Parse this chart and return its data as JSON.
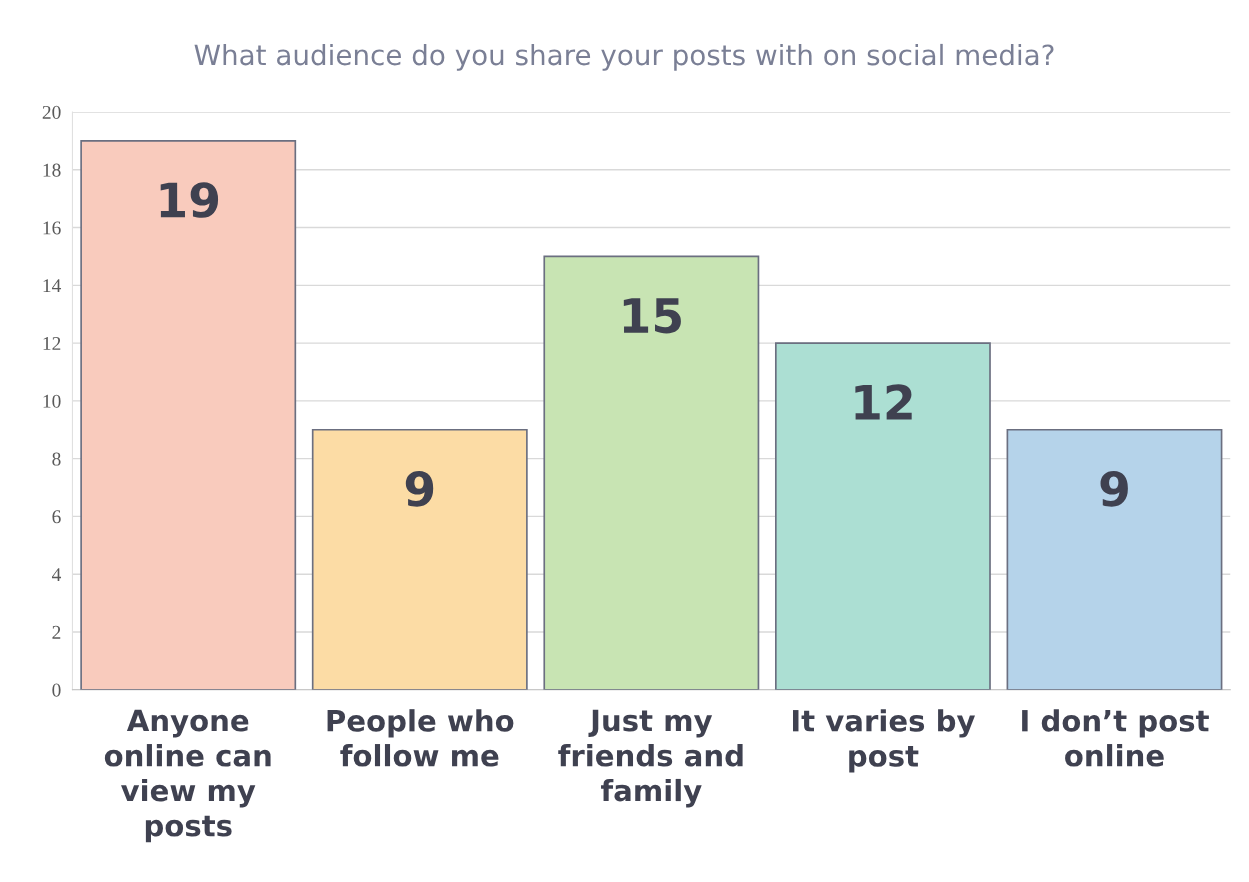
{
  "chart_data": {
    "type": "bar",
    "title": "What audience do you share your posts with on social media?",
    "categories": [
      "Anyone\nonline can\nview my\nposts",
      "People who\nfollow me",
      "Just my\nfriends and\nfamily",
      "It varies by\npost",
      "I don’t post\nonline"
    ],
    "values": [
      19,
      9,
      15,
      12,
      9
    ],
    "colors": [
      "#f9cbbd",
      "#fcdca5",
      "#c8e4b3",
      "#acdfd3",
      "#b5d3ea"
    ],
    "ylim": [
      0,
      20
    ],
    "yticks": [
      0,
      2,
      4,
      6,
      8,
      10,
      12,
      14,
      16,
      18,
      20
    ],
    "grid": "y",
    "data_labels": true
  }
}
